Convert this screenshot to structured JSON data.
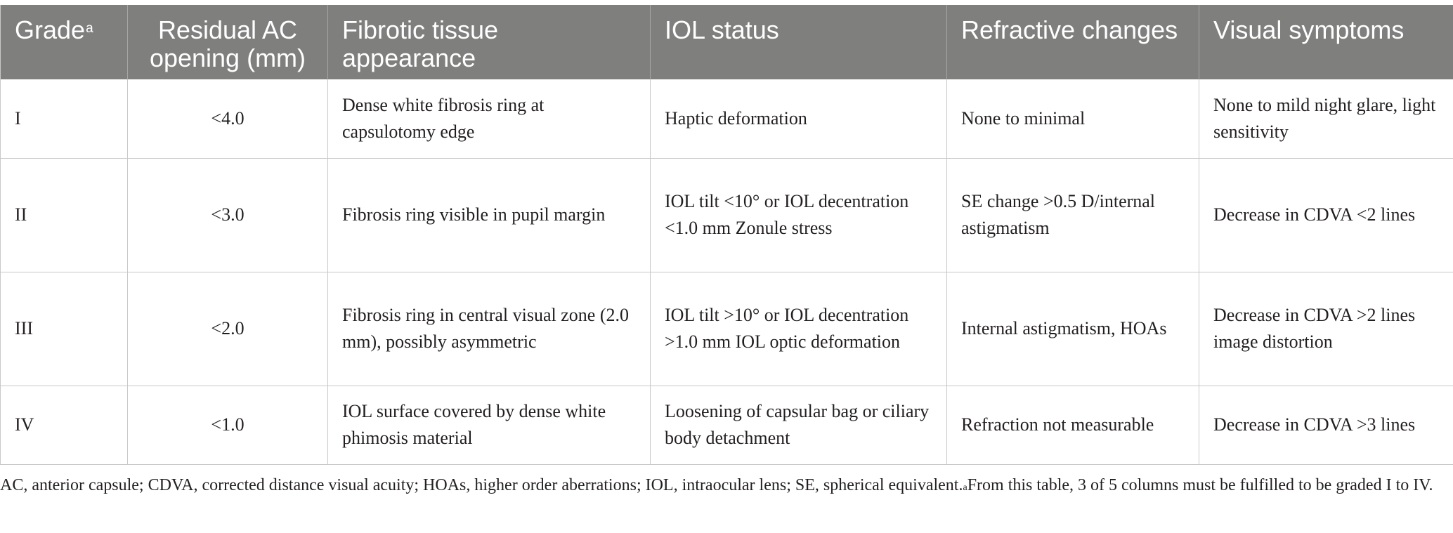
{
  "table": {
    "headers": [
      {
        "label": "Grade",
        "sup": "a"
      },
      {
        "label": "Residual AC opening (mm)"
      },
      {
        "label": "Fibrotic tissue appearance"
      },
      {
        "label": "IOL status"
      },
      {
        "label": "Refractive changes"
      },
      {
        "label": "Visual symptoms"
      }
    ],
    "rows": [
      [
        "I",
        "<4.0",
        "Dense white fibrosis ring at capsulotomy edge",
        "Haptic deformation",
        "None to minimal",
        "None to mild night glare, light sensitivity"
      ],
      [
        "II",
        "<3.0",
        "Fibrosis ring visible in pupil margin",
        "IOL tilt <10° or IOL decentration <1.0 mm Zonule stress",
        "SE change >0.5 D/internal astigmatism",
        "Decrease in CDVA <2 lines"
      ],
      [
        "III",
        "<2.0",
        "Fibrosis ring in central visual zone (2.0 mm), possibly asymmetric",
        "IOL tilt >10° or IOL decentration >1.0 mm IOL optic deformation",
        "Internal astigmatism, HOAs",
        "Decrease in CDVA >2 lines image distortion"
      ],
      [
        "IV",
        "<1.0",
        "IOL surface covered by dense white phimosis material",
        "Loosening of capsular bag or ciliary body detachment",
        "Refraction not measurable",
        "Decrease in CDVA >3 lines"
      ]
    ]
  },
  "footnote": {
    "abbreviations": "AC, anterior capsule; CDVA, corrected distance visual acuity; HOAs, higher order aberrations; IOL, intraocular lens; SE, spherical equivalent.",
    "sup": "a",
    "note": "From this table, 3 of 5 columns must be fulfilled to be graded I to IV."
  }
}
